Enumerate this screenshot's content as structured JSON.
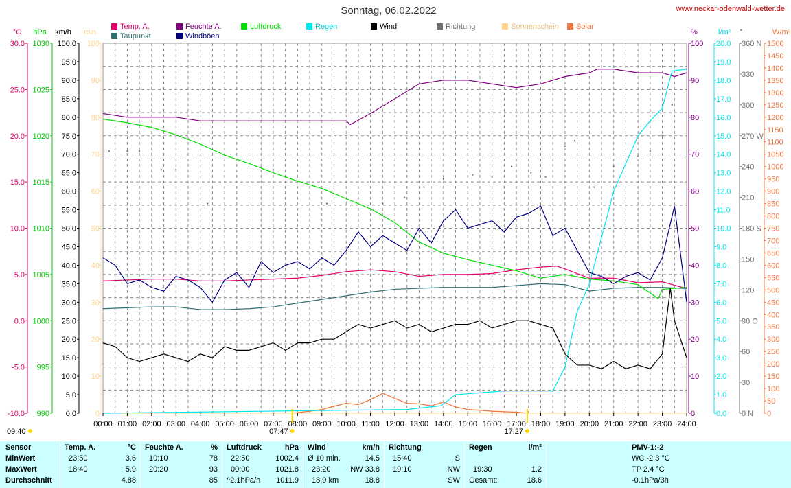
{
  "header": {
    "title": "Sonntag, 06.02.2022",
    "source": "www.neckar-odenwald-wetter.de"
  },
  "legend": [
    {
      "label": "Temp. A.",
      "color": "#e0006a"
    },
    {
      "label": "Taupunkt",
      "color": "#2f6f6f"
    },
    {
      "label": "Feuchte A.",
      "color": "#800080"
    },
    {
      "label": "Windböen",
      "color": "#000080"
    },
    {
      "label": "Luftdruck",
      "color": "#00dd00"
    },
    {
      "label": "Regen",
      "color": "#00e5ee"
    },
    {
      "label": "Wind",
      "color": "#000000"
    },
    {
      "label": "Richtung",
      "color": "#707070"
    },
    {
      "label": "Sonnenschein",
      "color": "#ffd38a"
    },
    {
      "label": "Solar",
      "color": "#f07840"
    }
  ],
  "axes_left": [
    {
      "unit": "°C",
      "color": "#e0006a",
      "ticks": [
        "30.0",
        "25.0",
        "20.0",
        "15.0",
        "10.0",
        "5.0",
        "0.0",
        "-5.0",
        "-10.0"
      ]
    },
    {
      "unit": "hPa",
      "color": "#00cc00",
      "ticks": [
        "1030",
        "1025",
        "1020",
        "1015",
        "1010",
        "1005",
        "1000",
        "995",
        "990"
      ]
    },
    {
      "unit": "km/h",
      "color": "#000000",
      "ticks": [
        "100.0",
        "95.0",
        "90.0",
        "85.0",
        "80.0",
        "75.0",
        "70.0",
        "65.0",
        "60.0",
        "55.0",
        "50.0",
        "45.0",
        "40.0",
        "35.0",
        "30.0",
        "25.0",
        "20.0",
        "15.0",
        "10.0",
        "5.0",
        "0.0"
      ]
    },
    {
      "unit": "min",
      "color": "#ffd38a",
      "ticks": [
        "100",
        "90",
        "80",
        "70",
        "60",
        "50",
        "40",
        "30",
        "20",
        "10",
        "0"
      ]
    }
  ],
  "axes_right": [
    {
      "unit": "%",
      "color": "#800080",
      "ticks": [
        "100",
        "90",
        "80",
        "70",
        "60",
        "50",
        "40",
        "30",
        "20",
        "10",
        "0"
      ]
    },
    {
      "unit": "l/m²",
      "color": "#00e5ee",
      "ticks": [
        "20.0",
        "19.0",
        "18.0",
        "17.0",
        "16.0",
        "15.0",
        "14.0",
        "13.0",
        "12.0",
        "11.0",
        "10.0",
        "9.0",
        "8.0",
        "7.0",
        "6.0",
        "5.0",
        "4.0",
        "3.0",
        "2.0",
        "1.0",
        "0.0"
      ]
    },
    {
      "unit": "°",
      "color": "#707070",
      "ticks": [
        "360 N",
        "330",
        "300",
        "270 W",
        "240",
        "210",
        "180 S",
        "150",
        "120",
        "90 O",
        "60",
        "30",
        "0 N"
      ]
    },
    {
      "unit": "W/m²",
      "color": "#f07840",
      "ticks": [
        "1500",
        "1450",
        "1400",
        "1350",
        "1300",
        "1250",
        "1200",
        "1150",
        "1100",
        "1050",
        "1000",
        "950",
        "900",
        "850",
        "800",
        "750",
        "700",
        "650",
        "600",
        "550",
        "500",
        "450",
        "400",
        "350",
        "300",
        "250",
        "200",
        "150",
        "100",
        "50",
        "0"
      ]
    }
  ],
  "sun": {
    "sunshine_total": "09:40",
    "sunrise": "07:47",
    "sunset": "17:27"
  },
  "chart_data": {
    "type": "line",
    "title": "Sonntag, 06.02.2022",
    "x_ticks": [
      "00:00",
      "01:00",
      "02:00",
      "03:00",
      "04:00",
      "05:00",
      "06:00",
      "07:00",
      "08:00",
      "09:00",
      "10:00",
      "11:00",
      "12:00",
      "13:00",
      "14:00",
      "15:00",
      "16:00",
      "17:00",
      "18:00",
      "19:00",
      "20:00",
      "21:00",
      "22:00",
      "23:00",
      "24:00"
    ],
    "x_range_hours": [
      0,
      24
    ],
    "grid": true,
    "series": [
      {
        "name": "Temp. A.",
        "unit": "°C",
        "color": "#e0006a",
        "x": [
          0,
          1,
          2,
          3,
          4,
          5,
          6,
          7,
          8,
          9,
          10,
          11,
          12,
          13,
          14,
          15,
          16,
          17,
          18,
          18.67,
          19,
          20,
          21,
          22,
          23,
          23.83,
          24
        ],
        "y": [
          4.3,
          4.4,
          4.5,
          4.5,
          4.3,
          4.3,
          4.4,
          4.5,
          4.6,
          4.9,
          5.3,
          5.5,
          5.3,
          4.8,
          5.0,
          5.0,
          5.1,
          5.5,
          5.8,
          5.9,
          5.6,
          4.6,
          4.6,
          4.1,
          4.2,
          3.6,
          3.6
        ]
      },
      {
        "name": "Taupunkt",
        "unit": "°C",
        "color": "#2f6f6f",
        "x": [
          0,
          1,
          2,
          3,
          4,
          5,
          6,
          7,
          8,
          9,
          10,
          11,
          12,
          13,
          14,
          15,
          16,
          17,
          18,
          19,
          20,
          21,
          22,
          23,
          23.83,
          24
        ],
        "y": [
          1.3,
          1.4,
          1.5,
          1.5,
          1.2,
          1.2,
          1.3,
          1.5,
          1.9,
          2.3,
          2.7,
          3.1,
          3.4,
          3.5,
          3.6,
          3.6,
          3.6,
          3.8,
          4.0,
          3.9,
          3.2,
          3.5,
          3.6,
          3.6,
          3.5,
          3.5
        ]
      },
      {
        "name": "Feuchte A.",
        "unit": "%",
        "color": "#800080",
        "x": [
          0,
          1,
          2,
          3,
          4,
          5,
          6,
          7,
          8,
          9,
          10,
          10.17,
          11,
          12,
          13,
          14,
          15,
          16,
          17,
          18,
          19,
          20,
          20.33,
          21,
          22,
          23,
          23.5,
          24
        ],
        "y": [
          81,
          80,
          80,
          80,
          79,
          79,
          79,
          79,
          79,
          79,
          79,
          78,
          81,
          85,
          89,
          90,
          90,
          89,
          88,
          89,
          91,
          92,
          93,
          93,
          92,
          92,
          91,
          92
        ]
      },
      {
        "name": "Luftdruck",
        "unit": "hPa",
        "color": "#00dd00",
        "x": [
          0,
          1,
          2,
          3,
          4,
          5,
          6,
          7,
          8,
          9,
          10,
          11,
          12,
          13,
          14,
          15,
          16,
          17,
          18,
          19,
          20,
          21,
          22,
          22.83,
          23,
          24
        ],
        "y": [
          1021.8,
          1021.4,
          1020.9,
          1020.1,
          1019.1,
          1017.9,
          1017.0,
          1016.0,
          1015.1,
          1014.3,
          1013.2,
          1012.1,
          1010.6,
          1008.5,
          1007.3,
          1006.6,
          1006.0,
          1005.4,
          1004.6,
          1005.0,
          1004.5,
          1004.3,
          1003.9,
          1002.4,
          1003.4,
          1003.6
        ]
      },
      {
        "name": "Regen",
        "unit": "l/m²",
        "color": "#00e5ee",
        "x": [
          0,
          12.5,
          13.9,
          14.5,
          15.5,
          16.5,
          17.5,
          18.5,
          19,
          19.5,
          20,
          20.5,
          21,
          21.5,
          22,
          22.5,
          23,
          23.4,
          24
        ],
        "y": [
          0,
          0.2,
          0.4,
          1.0,
          1.1,
          1.2,
          1.2,
          1.2,
          2.5,
          5.5,
          7.0,
          9.5,
          12.0,
          13.5,
          15.0,
          15.8,
          16.5,
          18.5,
          18.6
        ]
      },
      {
        "name": "Windböen",
        "unit": "km/h",
        "color": "#000080",
        "x": [
          0,
          0.5,
          1,
          1.5,
          2,
          2.5,
          3,
          3.5,
          4,
          4.5,
          5,
          5.5,
          6,
          6.5,
          7,
          7.5,
          8,
          8.5,
          9,
          9.5,
          10,
          10.5,
          11,
          11.5,
          12,
          12.5,
          13,
          13.5,
          14,
          14.5,
          15,
          15.5,
          16,
          16.5,
          17,
          17.5,
          18,
          18.5,
          19,
          19.5,
          20,
          20.5,
          21,
          21.5,
          22,
          22.5,
          23,
          23.5,
          24
        ],
        "y": [
          42,
          40,
          35,
          36,
          34,
          33,
          37,
          36,
          34,
          30,
          36,
          38,
          34,
          41,
          38,
          40,
          41,
          39,
          42,
          40,
          44,
          49,
          45,
          48,
          46,
          44,
          50,
          46,
          52,
          55,
          50,
          51,
          52,
          49,
          53,
          54,
          56,
          48,
          50,
          44,
          38,
          37,
          35,
          37,
          38,
          36,
          42,
          56,
          30
        ]
      },
      {
        "name": "Wind",
        "unit": "km/h",
        "color": "#000000",
        "x": [
          0,
          0.5,
          1,
          1.5,
          2,
          2.5,
          3,
          3.5,
          4,
          4.5,
          5,
          5.5,
          6,
          6.5,
          7,
          7.5,
          8,
          8.5,
          9,
          9.5,
          10,
          10.5,
          11,
          11.5,
          12,
          12.5,
          13,
          13.5,
          14,
          14.5,
          15,
          15.5,
          16,
          16.5,
          17,
          17.5,
          18,
          18.5,
          19,
          19.5,
          20,
          20.5,
          21,
          21.5,
          22,
          22.5,
          23,
          23.33,
          23.5,
          24
        ],
        "y": [
          19,
          18,
          15,
          14,
          15,
          16,
          15,
          14,
          16,
          15,
          18,
          17,
          17,
          18,
          19,
          17,
          19,
          19,
          20,
          20,
          22,
          24,
          23,
          24,
          25,
          23,
          24,
          22,
          23,
          24,
          24,
          25,
          23,
          24,
          25,
          25,
          24,
          23,
          16,
          13,
          13,
          12,
          14,
          12,
          13,
          12,
          16,
          33.8,
          25,
          15
        ]
      }
    ],
    "direction_points_deg": [
      {
        "x": 0.25,
        "y": 255
      },
      {
        "x": 1.0,
        "y": 255
      },
      {
        "x": 1.5,
        "y": 255
      },
      {
        "x": 2.4,
        "y": 237
      },
      {
        "x": 3.0,
        "y": 237
      },
      {
        "x": 4.3,
        "y": 204
      },
      {
        "x": 7.0,
        "y": 237
      },
      {
        "x": 9.2,
        "y": 204
      },
      {
        "x": 11.5,
        "y": 204
      },
      {
        "x": 12.4,
        "y": 210
      },
      {
        "x": 13.2,
        "y": 220
      },
      {
        "x": 14.0,
        "y": 228
      },
      {
        "x": 15.2,
        "y": 232
      },
      {
        "x": 16.0,
        "y": 230
      },
      {
        "x": 16.8,
        "y": 240
      },
      {
        "x": 17.6,
        "y": 234
      },
      {
        "x": 18.2,
        "y": 230
      },
      {
        "x": 19.0,
        "y": 260
      },
      {
        "x": 19.4,
        "y": 265
      },
      {
        "x": 20.2,
        "y": 220
      },
      {
        "x": 21.0,
        "y": 240
      },
      {
        "x": 22.0,
        "y": 250
      },
      {
        "x": 22.5,
        "y": 255
      },
      {
        "x": 23.0,
        "y": 270
      },
      {
        "x": 23.4,
        "y": 300
      }
    ],
    "solar_w_m2": {
      "x": [
        7.8,
        8.5,
        9,
        9.5,
        10,
        10.5,
        11,
        11.5,
        12,
        12.5,
        13,
        13.5,
        14,
        14.5,
        15,
        15.5,
        16,
        16.5,
        17,
        17.45
      ],
      "y": [
        0,
        8,
        15,
        28,
        40,
        35,
        55,
        80,
        60,
        40,
        38,
        30,
        45,
        25,
        15,
        12,
        8,
        6,
        4,
        0
      ]
    },
    "sunshine_min": {
      "x": [
        0,
        24
      ],
      "y": [
        0,
        0
      ]
    }
  },
  "table": {
    "row_labels": [
      "Sensor",
      "MinWert",
      "MaxWert",
      "Durchschnitt"
    ],
    "temp": {
      "head": "Temp. A.",
      "unit": "°C",
      "min_time": "23:50",
      "min": "3.6",
      "max_time": "18:40",
      "max": "5.9",
      "avg": "4.88"
    },
    "hum": {
      "head": "Feuchte A.",
      "unit": "%",
      "min_time": "10:10",
      "min": "78",
      "max_time": "20:20",
      "max": "93",
      "avg": "85"
    },
    "press": {
      "head": "Luftdruck",
      "unit": "hPa",
      "min_time": "22:50",
      "min": "1002.4",
      "max_time": "00:00",
      "max": "1021.8",
      "trend": "^2.1hPa/h",
      "avg": "1011.9"
    },
    "wind": {
      "head": "Wind",
      "unit": "km/h",
      "row1_label": "Ø 10 min.",
      "row1_val": "14.5",
      "row2_time": "23:20",
      "row2_val": "NW 33.8",
      "row3_label": "18,9 km",
      "row3_val": "18.8"
    },
    "dir": {
      "head": "Richtung",
      "row1_time": "15:40",
      "row1_val": "S",
      "row2_time": "19:10",
      "row2_val": "NW",
      "row3_val": "SW"
    },
    "rain": {
      "head": "Regen",
      "unit": "l/m²",
      "row2_time": "19:30",
      "row2_val": "1.2",
      "row3_label": "Gesamt:",
      "row3_val": "18.6"
    },
    "pmv": {
      "head": "PMV-1:-2",
      "row1": "WC -2.3 °C",
      "row2": "TP 2.4 °C",
      "row3": "-0.1hPa/3h"
    }
  }
}
